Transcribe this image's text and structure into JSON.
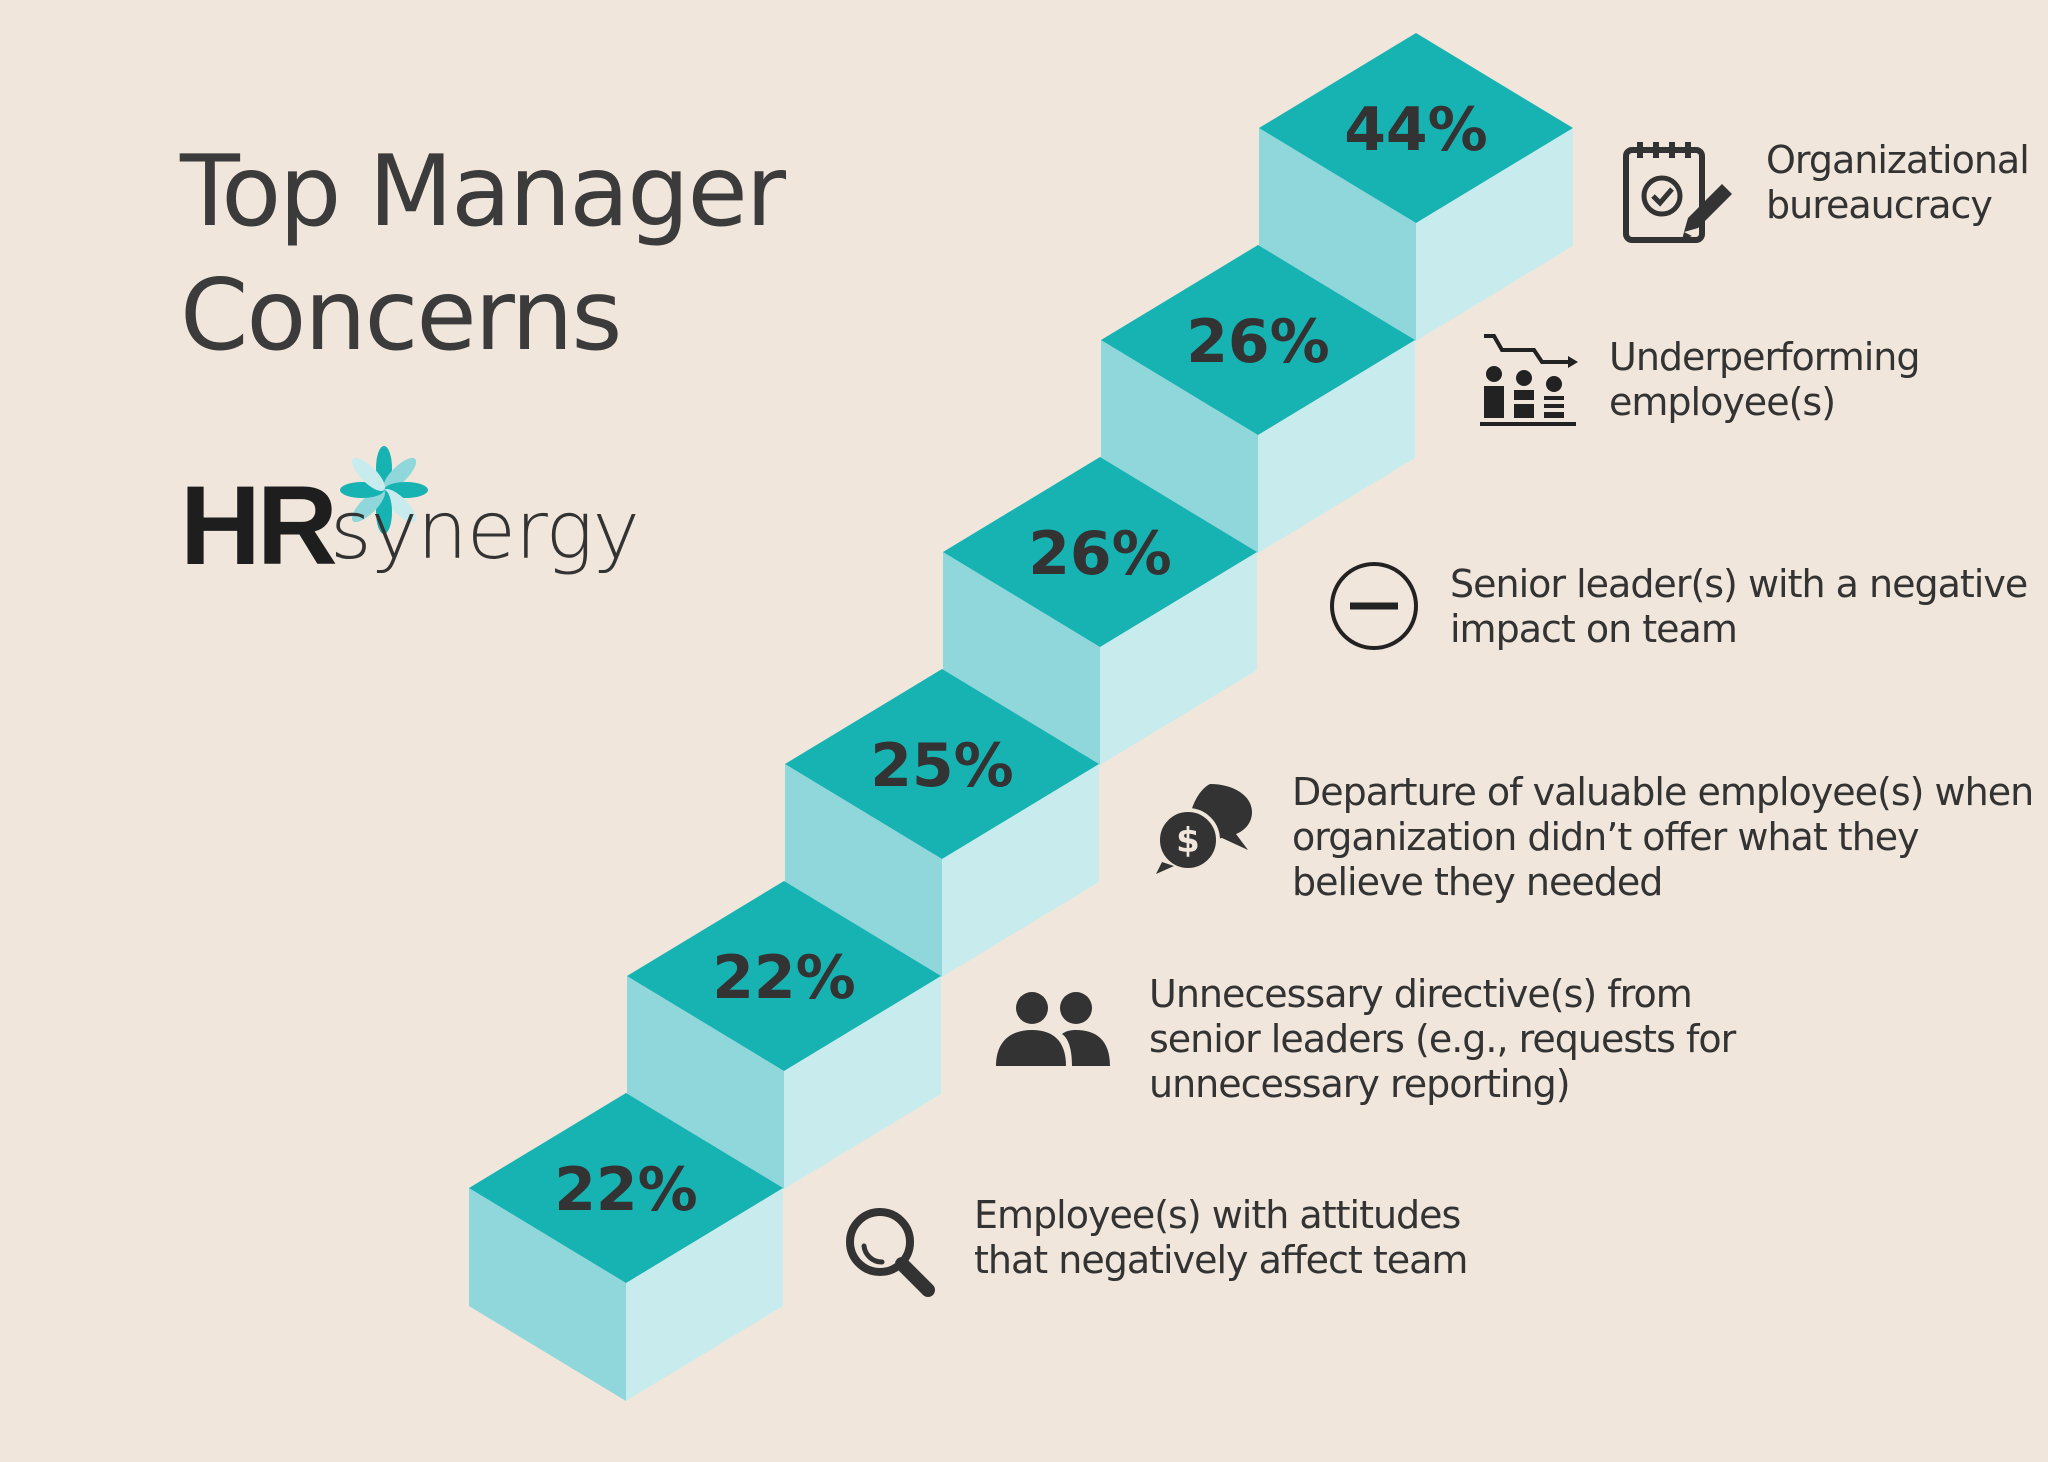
{
  "title": [
    "Top Manager",
    "Concerns"
  ],
  "logo": {
    "bold": "HR",
    "light": "synergy"
  },
  "colors": {
    "background": "#f0e6db",
    "top_face": "#17b3b3",
    "left_face": "#8fd7db",
    "right_face": "#c8ecee",
    "text": "#333333"
  },
  "steps": [
    {
      "value": "22%",
      "lines": [
        "Employee(s) with attitudes",
        "that negatively affect team"
      ],
      "icon": "magnifier-icon"
    },
    {
      "value": "22%",
      "lines": [
        "Unnecessary directive(s) from",
        "senior leaders (e.g., requests for",
        "unnecessary reporting)"
      ],
      "icon": "people-icon"
    },
    {
      "value": "25%",
      "lines": [
        "Departure of valuable employee(s) when",
        "organization didn’t offer what they",
        "believe they needed"
      ],
      "icon": "chat-dollar-icon"
    },
    {
      "value": "26%",
      "lines": [
        "Senior leader(s) with a negative",
        "impact on team"
      ],
      "icon": "minus-circle-icon"
    },
    {
      "value": "26%",
      "lines": [
        "Underperforming",
        "employee(s)"
      ],
      "icon": "performance-chart-icon"
    },
    {
      "value": "44%",
      "lines": [
        "Organizational",
        "bureaucracy"
      ],
      "icon": "calendar-edit-icon"
    }
  ]
}
